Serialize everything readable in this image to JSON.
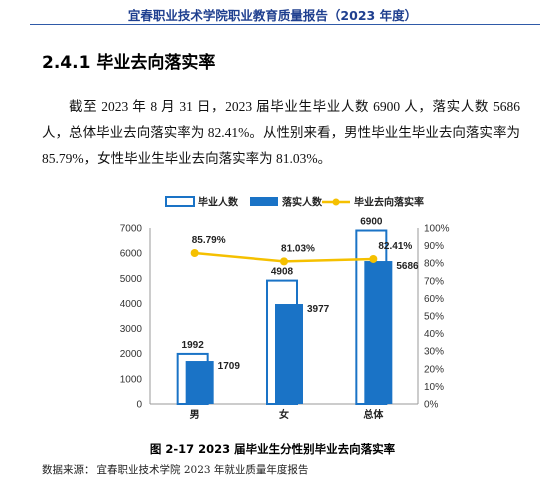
{
  "header": {
    "title": "宜春职业技术学院职业教育质量报告（2023 年度）"
  },
  "section": {
    "number": "2.4.1",
    "title": "毕业去向落实率"
  },
  "paragraph": "截至 2023 年 8 月 31 日，2023 届毕业生毕业人数 6900 人，落实人数 5686 人，总体毕业去向落实率为 82.41%。从性别来看，男性毕业生毕业去向落实率为 85.79%，女性毕业生毕业去向落实率为 81.03%。",
  "caption": "图 2-17 2023 届毕业生分性别毕业去向落实率",
  "source": {
    "label": "数据来源：",
    "text": "宜春职业技术学院 2023 年就业质量年度报告"
  },
  "colors": {
    "accent_blue": "#1a73c6",
    "line_yellow": "#f5c000",
    "header_blue": "#1f3f8f"
  },
  "chart_data": {
    "type": "bar",
    "categories": [
      "男",
      "女",
      "总体"
    ],
    "series": [
      {
        "name": "毕业人数",
        "kind": "bar-outline",
        "axis": "left",
        "values": [
          1992,
          4908,
          6900
        ]
      },
      {
        "name": "落实人数",
        "kind": "bar-filled",
        "axis": "left",
        "values": [
          1709,
          3977,
          5686
        ]
      },
      {
        "name": "毕业去向落实率",
        "kind": "line",
        "axis": "right",
        "values": [
          85.79,
          81.03,
          82.41
        ]
      }
    ],
    "rate_labels": [
      "85.79%",
      "81.03%",
      "82.41%"
    ],
    "yleft": {
      "min": 0,
      "max": 7000,
      "step": 1000
    },
    "yright": {
      "min": 0,
      "max": 100,
      "step": 10,
      "suffix": "%"
    },
    "legend_position": "top",
    "grid": false
  }
}
